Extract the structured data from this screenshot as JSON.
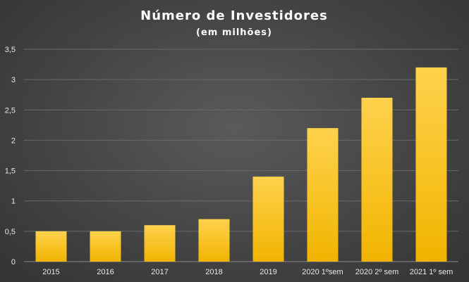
{
  "chart_data": {
    "type": "bar",
    "title": "Número de Investidores",
    "subtitle": "(em milhões)",
    "categories": [
      "2015",
      "2016",
      "2017",
      "2018",
      "2019",
      "2020 1ºsem",
      "2020 2º sem",
      "2021 1º sem"
    ],
    "values": [
      0.5,
      0.5,
      0.6,
      0.7,
      1.4,
      2.2,
      2.7,
      3.2
    ],
    "y_ticks": [
      "0",
      "0,5",
      "1",
      "1,5",
      "2",
      "2,5",
      "3",
      "3,5"
    ],
    "ylim": [
      0,
      3.5
    ],
    "grid": true,
    "legend": "none",
    "colors": {
      "bar_top": "#ffd24d",
      "bar_bottom": "#f0b400",
      "grid": "#6a6a6a",
      "text": "#e8e8e8"
    }
  }
}
